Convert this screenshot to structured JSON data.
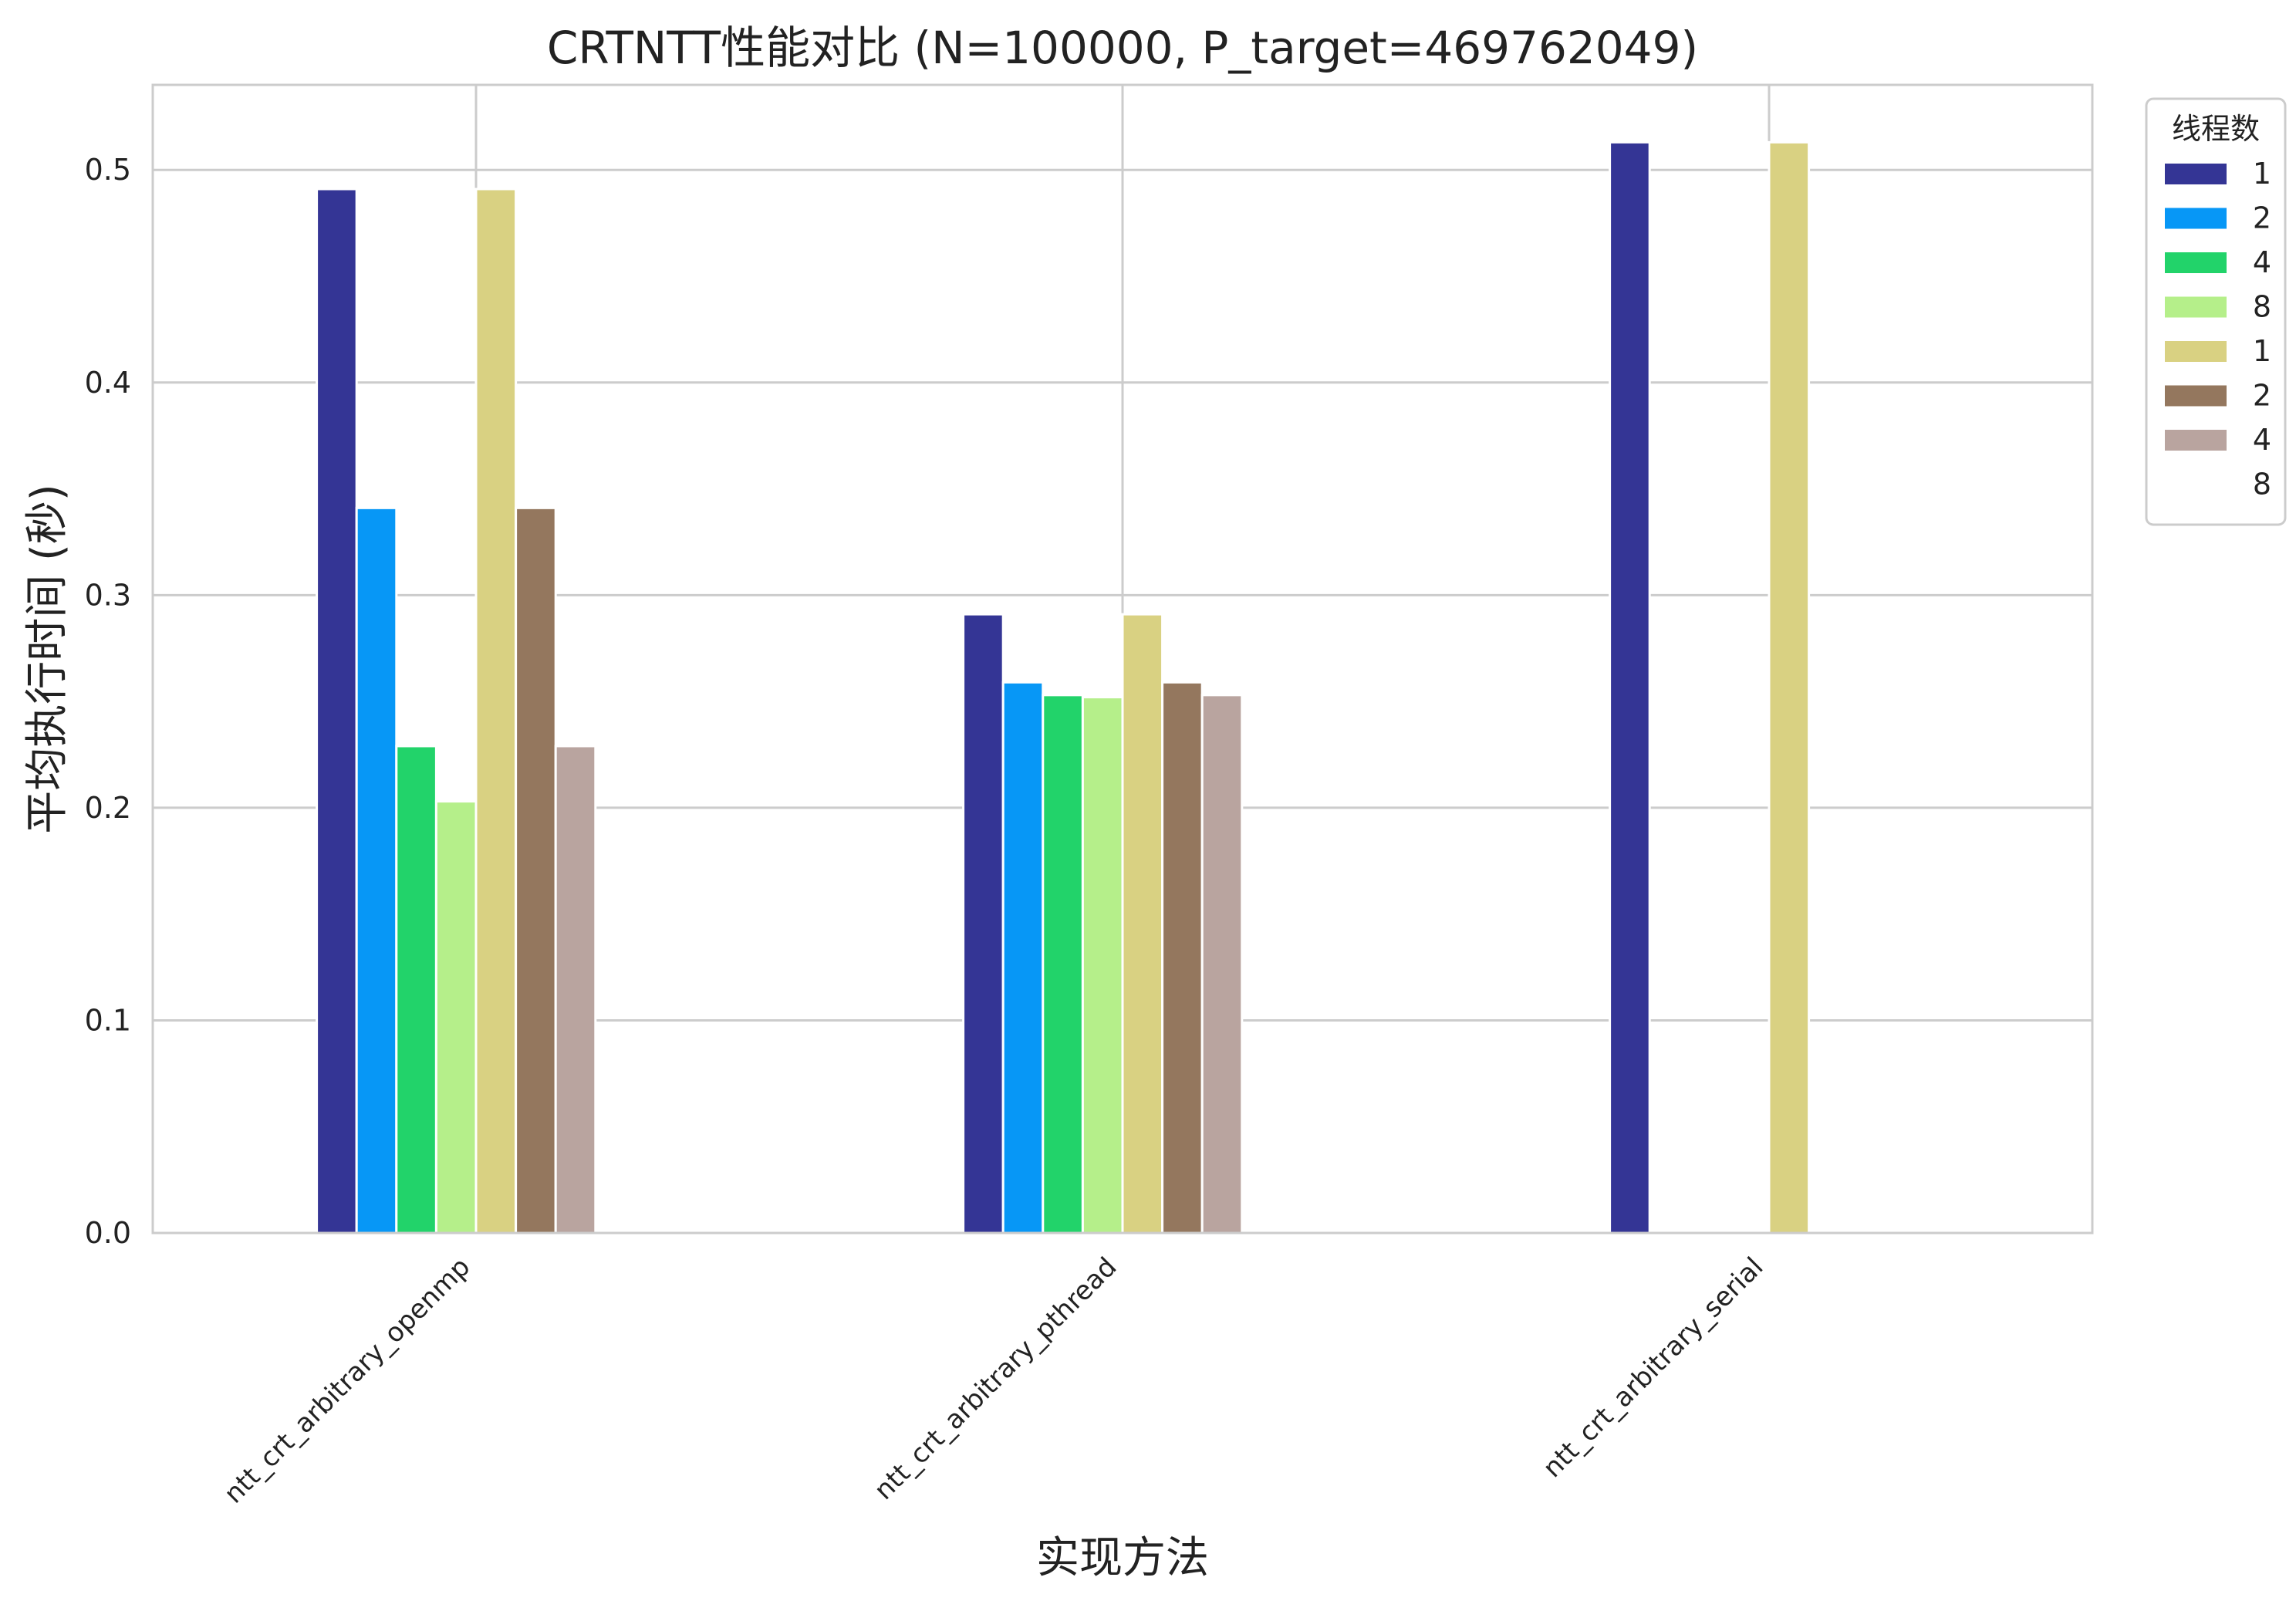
{
  "chart_data": {
    "type": "bar",
    "title": "CRTNTT性能对比 (N=100000, P_target=469762049)",
    "xlabel": "实现方法",
    "ylabel": "平均执行时间 (秒)",
    "ylim": [
      0,
      0.54
    ],
    "yticks": [
      "0.0",
      "0.1",
      "0.2",
      "0.3",
      "0.4",
      "0.5"
    ],
    "grid": true,
    "legend": {
      "title": "线程数",
      "position": "top-right, outside"
    },
    "categories": [
      "ntt_crt_arbitrary_openmp",
      "ntt_crt_arbitrary_pthread",
      "ntt_crt_arbitrary_serial"
    ],
    "series": [
      {
        "name": "1",
        "color": "#343595",
        "values": [
          0.491,
          0.291,
          0.513
        ]
      },
      {
        "name": "2",
        "color": "#0797f6",
        "values": [
          0.341,
          0.259,
          null
        ]
      },
      {
        "name": "4",
        "color": "#22d36a",
        "values": [
          0.229,
          0.253,
          null
        ]
      },
      {
        "name": "8",
        "color": "#b5ef8a",
        "values": [
          0.203,
          0.252,
          null
        ]
      },
      {
        "name": "1",
        "color": "#d9d182",
        "values": [
          0.491,
          0.291,
          0.513
        ]
      },
      {
        "name": "2",
        "color": "#94775e",
        "values": [
          0.341,
          0.259,
          null
        ]
      },
      {
        "name": "4",
        "color": "#b9a49f",
        "values": [
          0.229,
          0.253,
          null
        ]
      },
      {
        "name": "8",
        "color": "#ffffff",
        "values": [
          null,
          null,
          null
        ]
      }
    ]
  }
}
